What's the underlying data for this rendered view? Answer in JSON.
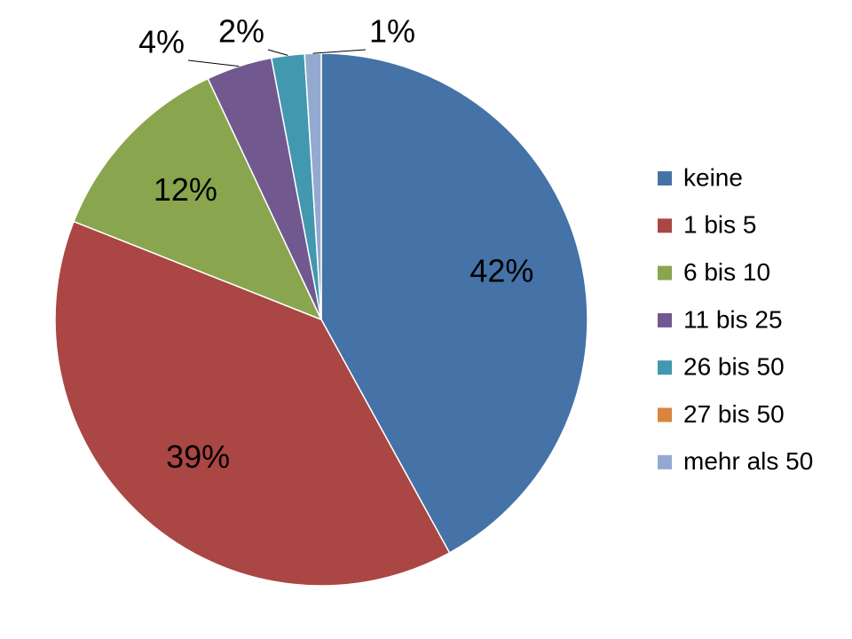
{
  "chart_data": {
    "type": "pie",
    "categories": [
      "keine",
      "1 bis 5",
      "6 bis 10",
      "11 bis 25",
      "26 bis 50",
      "27 bis 50",
      "mehr als 50"
    ],
    "values": [
      42,
      39,
      12,
      4,
      2,
      0,
      1
    ],
    "value_labels": [
      "42%",
      "39%",
      "12%",
      "4%",
      "2%",
      null,
      "1%"
    ],
    "colors": [
      "#4572A7",
      "#AA4643",
      "#89A54E",
      "#71588F",
      "#4198AF",
      "#DB843D",
      "#93A9CF"
    ],
    "legend": "right"
  }
}
